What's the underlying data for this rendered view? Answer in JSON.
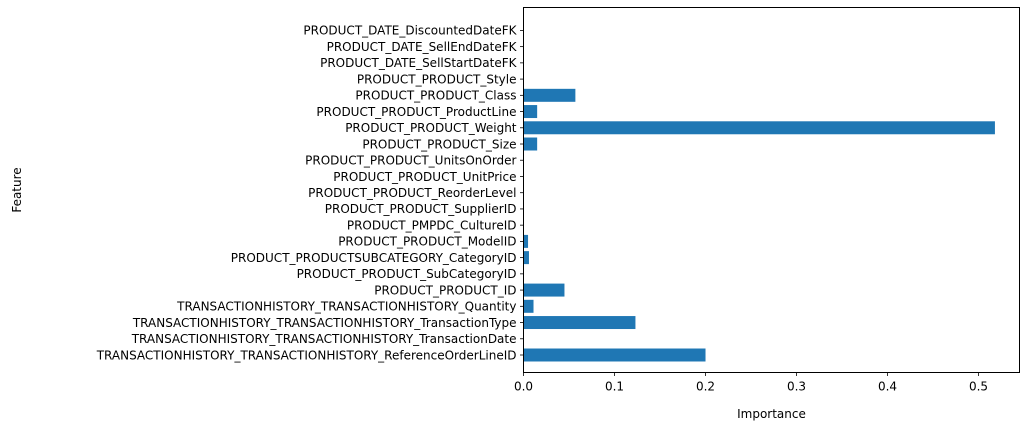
{
  "chart_data": {
    "type": "bar",
    "orientation": "horizontal",
    "title": "",
    "xlabel": "Importance",
    "ylabel": "Feature",
    "xlim": [
      0,
      0.545
    ],
    "xticks": [
      0.0,
      0.1,
      0.2,
      0.3,
      0.4,
      0.5
    ],
    "xtick_labels": [
      "0.0",
      "0.1",
      "0.2",
      "0.3",
      "0.4",
      "0.5"
    ],
    "grid": false,
    "bar_color": "#1f77b4",
    "categories": [
      "TRANSACTIONHISTORY_TRANSACTIONHISTORY_ReferenceOrderLineID",
      "TRANSACTIONHISTORY_TRANSACTIONHISTORY_TransactionDate",
      "TRANSACTIONHISTORY_TRANSACTIONHISTORY_TransactionType",
      "TRANSACTIONHISTORY_TRANSACTIONHISTORY_Quantity",
      "PRODUCT_PRODUCT_ID",
      "PRODUCT_PRODUCT_SubCategoryID",
      "PRODUCT_PRODUCTSUBCATEGORY_CategoryID",
      "PRODUCT_PRODUCT_ModelID",
      "PRODUCT_PMPDC_CultureID",
      "PRODUCT_PRODUCT_SupplierID",
      "PRODUCT_PRODUCT_ReorderLevel",
      "PRODUCT_PRODUCT_UnitPrice",
      "PRODUCT_PRODUCT_UnitsOnOrder",
      "PRODUCT_PRODUCT_Size",
      "PRODUCT_PRODUCT_Weight",
      "PRODUCT_PRODUCT_ProductLine",
      "PRODUCT_PRODUCT_Class",
      "PRODUCT_PRODUCT_Style",
      "PRODUCT_DATE_SellStartDateFK",
      "PRODUCT_DATE_SellEndDateFK",
      "PRODUCT_DATE_DiscountedDateFK"
    ],
    "values": [
      0.2,
      0.0,
      0.123,
      0.011,
      0.045,
      0.0,
      0.006,
      0.005,
      0.0,
      0.0,
      0.0,
      0.0,
      0.0,
      0.015,
      0.518,
      0.015,
      0.057,
      0.0,
      0.0,
      0.0,
      0.0
    ]
  }
}
